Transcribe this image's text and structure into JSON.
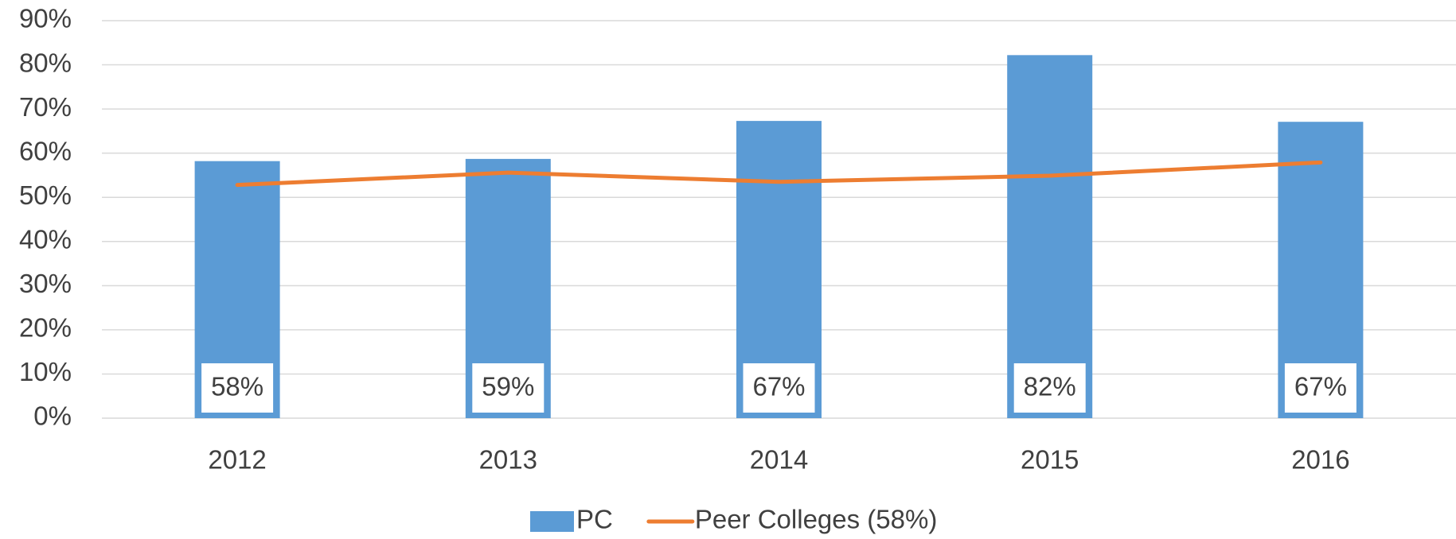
{
  "chart_data": {
    "type": "bar",
    "categories": [
      "2012",
      "2013",
      "2014",
      "2015",
      "2016"
    ],
    "series": [
      {
        "name": "PC",
        "type": "bar",
        "color": "#5b9bd5",
        "values": [
          58.2,
          58.7,
          67.3,
          82.2,
          67.1
        ],
        "value_labels": [
          "58%",
          "59%",
          "67%",
          "82%",
          "67%"
        ]
      },
      {
        "name": "Peer Colleges (58%)",
        "type": "line",
        "color": "#ed7d31",
        "values": [
          52.8,
          55.6,
          53.5,
          54.9,
          57.9
        ]
      }
    ],
    "ylim": [
      0,
      90
    ],
    "yticks": [
      {
        "value": 0,
        "label": "0%"
      },
      {
        "value": 10,
        "label": "10%"
      },
      {
        "value": 20,
        "label": "20%"
      },
      {
        "value": 30,
        "label": "30%"
      },
      {
        "value": 40,
        "label": "40%"
      },
      {
        "value": 50,
        "label": "50%"
      },
      {
        "value": 60,
        "label": "60%"
      },
      {
        "value": 70,
        "label": "70%"
      },
      {
        "value": 80,
        "label": "80%"
      },
      {
        "value": 90,
        "label": "90%"
      }
    ],
    "grid": true,
    "legend": "bottom"
  }
}
